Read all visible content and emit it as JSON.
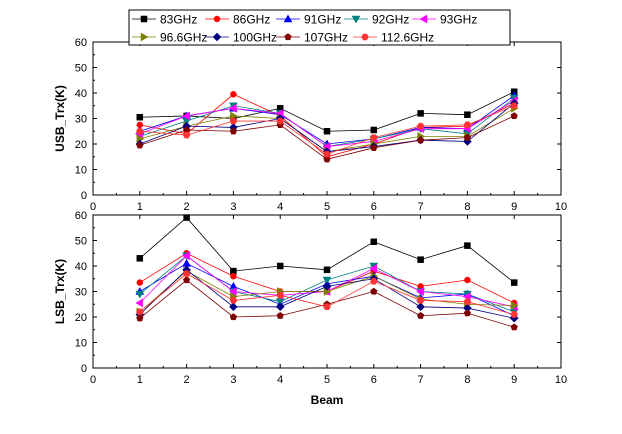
{
  "chart_data": [
    {
      "type": "line",
      "xlabel": "",
      "ylabel": "USB_Trx(K)",
      "xlim": [
        0,
        10
      ],
      "ylim": [
        0,
        60
      ],
      "xticks": [
        0,
        1,
        2,
        3,
        4,
        5,
        6,
        7,
        8,
        9,
        10
      ],
      "yticks": [
        0,
        10,
        20,
        30,
        40,
        50,
        60
      ],
      "grid": false,
      "legend": "top",
      "x": [
        1,
        2,
        3,
        4,
        5,
        6,
        7,
        8,
        9
      ],
      "series": [
        {
          "name": "83GHz",
          "color": "#000000",
          "marker": "square",
          "values": [
            30.5,
            31,
            30,
            34,
            25,
            25.5,
            32,
            31.5,
            40.5
          ]
        },
        {
          "name": "86GHz",
          "color": "#ff0000",
          "marker": "circle",
          "values": [
            27.5,
            24,
            39.5,
            31,
            15,
            20,
            26.5,
            27,
            36
          ]
        },
        {
          "name": "91GHz",
          "color": "#0000ff",
          "marker": "triangle-up",
          "values": [
            25,
            31,
            34,
            31.5,
            20,
            22,
            26.5,
            26,
            39
          ]
        },
        {
          "name": "92GHz",
          "color": "#008080",
          "marker": "triangle-down",
          "values": [
            23,
            29,
            35,
            32,
            19,
            22,
            26,
            24,
            38
          ]
        },
        {
          "name": "93GHz",
          "color": "#ff00ff",
          "marker": "triangle-left",
          "values": [
            24,
            31,
            34,
            32,
            19,
            21,
            26,
            26,
            37
          ]
        },
        {
          "name": "96.6GHz",
          "color": "#808000",
          "marker": "triangle-right",
          "values": [
            22,
            27,
            31,
            30,
            17,
            20,
            23,
            23,
            34
          ]
        },
        {
          "name": "100GHz",
          "color": "#00007f",
          "marker": "diamond",
          "values": [
            20,
            27,
            26.5,
            30,
            17,
            19,
            21.5,
            21,
            36
          ]
        },
        {
          "name": "107GHz",
          "color": "#7f0000",
          "marker": "pentagon",
          "values": [
            19.5,
            25.5,
            25,
            27.5,
            14,
            18.5,
            21.5,
            22.5,
            31
          ]
        },
        {
          "name": "112.6GHz",
          "color": "#ff3333",
          "marker": "hexagon",
          "values": [
            25,
            23.5,
            29,
            29,
            16,
            22.5,
            27,
            27.5,
            35
          ]
        }
      ]
    },
    {
      "type": "line",
      "xlabel": "Beam",
      "ylabel": "LSB_Trx(K)",
      "xlim": [
        0,
        10
      ],
      "ylim": [
        0,
        60
      ],
      "xticks": [
        0,
        1,
        2,
        3,
        4,
        5,
        6,
        7,
        8,
        9,
        10
      ],
      "yticks": [
        0,
        10,
        20,
        30,
        40,
        50,
        60
      ],
      "grid": false,
      "x": [
        1,
        2,
        3,
        4,
        5,
        6,
        7,
        8,
        9
      ],
      "series": [
        {
          "name": "83GHz",
          "values": [
            43,
            59,
            38,
            40,
            38.5,
            49.5,
            42.5,
            48,
            33.5
          ]
        },
        {
          "name": "86GHz",
          "values": [
            33.5,
            45,
            36,
            30,
            30,
            38,
            32,
            34.5,
            25.5
          ]
        },
        {
          "name": "91GHz",
          "values": [
            30,
            41,
            32,
            25,
            33,
            36,
            27.5,
            29,
            20.5
          ]
        },
        {
          "name": "92GHz",
          "values": [
            29,
            44,
            30,
            26,
            34.5,
            40,
            30,
            29,
            22
          ]
        },
        {
          "name": "93GHz",
          "values": [
            25.5,
            44,
            30,
            28.5,
            30,
            39,
            30,
            28,
            24
          ]
        },
        {
          "name": "96.6GHz",
          "values": [
            22,
            38,
            28,
            30,
            30,
            36,
            27,
            25,
            24.5
          ]
        },
        {
          "name": "100GHz",
          "values": [
            21,
            38.5,
            24,
            24,
            32,
            35,
            24,
            23.5,
            19.5
          ]
        },
        {
          "name": "107GHz",
          "values": [
            19.5,
            34.5,
            20,
            20.5,
            25,
            30,
            20.5,
            21.5,
            16
          ]
        },
        {
          "name": "112.6GHz",
          "values": [
            22,
            37,
            26.5,
            28.5,
            24,
            34,
            26.5,
            26,
            21
          ]
        }
      ]
    }
  ]
}
